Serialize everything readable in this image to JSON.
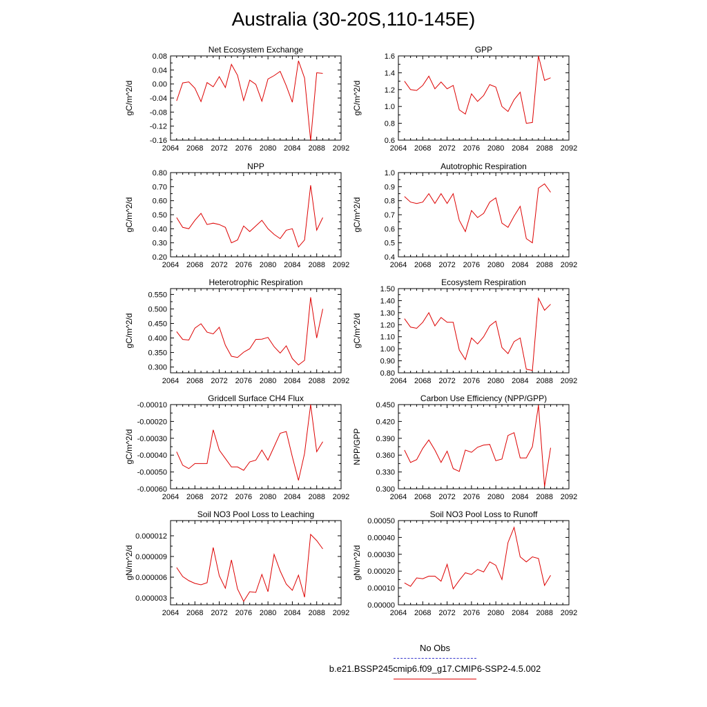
{
  "title": "Australia (30-20S,110-145E)",
  "legend": {
    "obs_label": "No Obs",
    "obs_color": "#3333cc",
    "model_label": "b.e21.BSSP245cmip6.f09_g17.CMIP6-SSP2-4.5.002",
    "model_color": "#dd0000"
  },
  "chart_data": [
    {
      "type": "line",
      "title": "Net Ecosystem Exchange",
      "ylabel": "gC/m^2/d",
      "xlim": [
        2064,
        2092
      ],
      "ylim": [
        -0.16,
        0.08
      ],
      "x_ticks": [
        "2064",
        "2068",
        "2072",
        "2076",
        "2080",
        "2084",
        "2088",
        "2092"
      ],
      "y_ticks": [
        "-0.16",
        "-0.12",
        "-0.08",
        "-0.04",
        "0.00",
        "0.04",
        "0.08"
      ],
      "x": [
        2065,
        2066,
        2067,
        2068,
        2069,
        2070,
        2071,
        2072,
        2073,
        2074,
        2075,
        2076,
        2077,
        2078,
        2079,
        2080,
        2081,
        2082,
        2083,
        2084,
        2085,
        2086,
        2087,
        2088,
        2089
      ],
      "values": [
        -0.048,
        0.003,
        0.006,
        -0.012,
        -0.05,
        0.004,
        -0.008,
        0.021,
        -0.01,
        0.056,
        0.025,
        -0.047,
        0.011,
        -0.001,
        -0.049,
        0.014,
        0.024,
        0.036,
        -0.005,
        -0.052,
        0.066,
        0.017,
        -0.162,
        0.032,
        0.03
      ]
    },
    {
      "type": "line",
      "title": "GPP",
      "ylabel": "gC/m^2/d",
      "xlim": [
        2064,
        2092
      ],
      "ylim": [
        0.6,
        1.6
      ],
      "x_ticks": [
        "2064",
        "2068",
        "2072",
        "2076",
        "2080",
        "2084",
        "2088",
        "2092"
      ],
      "y_ticks": [
        "0.6",
        "0.8",
        "1.0",
        "1.2",
        "1.4",
        "1.6"
      ],
      "x": [
        2065,
        2066,
        2067,
        2068,
        2069,
        2070,
        2071,
        2072,
        2073,
        2074,
        2075,
        2076,
        2077,
        2078,
        2079,
        2080,
        2081,
        2082,
        2083,
        2084,
        2085,
        2086,
        2087,
        2088,
        2089
      ],
      "values": [
        1.3,
        1.2,
        1.19,
        1.25,
        1.36,
        1.21,
        1.29,
        1.21,
        1.25,
        0.96,
        0.91,
        1.15,
        1.06,
        1.13,
        1.26,
        1.23,
        1.0,
        0.94,
        1.08,
        1.17,
        0.8,
        0.81,
        1.6,
        1.31,
        1.34
      ]
    },
    {
      "type": "line",
      "title": "NPP",
      "ylabel": "gC/m^2/d",
      "xlim": [
        2064,
        2092
      ],
      "ylim": [
        0.2,
        0.8
      ],
      "x_ticks": [
        "2064",
        "2068",
        "2072",
        "2076",
        "2080",
        "2084",
        "2088",
        "2092"
      ],
      "y_ticks": [
        "0.20",
        "0.30",
        "0.40",
        "0.50",
        "0.60",
        "0.70",
        "0.80"
      ],
      "x": [
        2065,
        2066,
        2067,
        2068,
        2069,
        2070,
        2071,
        2072,
        2073,
        2074,
        2075,
        2076,
        2077,
        2078,
        2079,
        2080,
        2081,
        2082,
        2083,
        2084,
        2085,
        2086,
        2087,
        2088,
        2089
      ],
      "values": [
        0.48,
        0.41,
        0.4,
        0.46,
        0.51,
        0.43,
        0.44,
        0.43,
        0.41,
        0.3,
        0.32,
        0.42,
        0.38,
        0.42,
        0.46,
        0.4,
        0.36,
        0.33,
        0.39,
        0.4,
        0.27,
        0.32,
        0.71,
        0.39,
        0.48
      ]
    },
    {
      "type": "line",
      "title": "Autotrophic Respiration",
      "ylabel": "gC/m^2/d",
      "xlim": [
        2064,
        2092
      ],
      "ylim": [
        0.4,
        1.0
      ],
      "x_ticks": [
        "2064",
        "2068",
        "2072",
        "2076",
        "2080",
        "2084",
        "2088",
        "2092"
      ],
      "y_ticks": [
        "0.4",
        "0.5",
        "0.6",
        "0.7",
        "0.8",
        "0.9",
        "1.0"
      ],
      "x": [
        2065,
        2066,
        2067,
        2068,
        2069,
        2070,
        2071,
        2072,
        2073,
        2074,
        2075,
        2076,
        2077,
        2078,
        2079,
        2080,
        2081,
        2082,
        2083,
        2084,
        2085,
        2086,
        2087,
        2088,
        2089
      ],
      "values": [
        0.83,
        0.79,
        0.78,
        0.79,
        0.85,
        0.78,
        0.85,
        0.78,
        0.85,
        0.66,
        0.58,
        0.73,
        0.68,
        0.71,
        0.79,
        0.82,
        0.64,
        0.61,
        0.69,
        0.76,
        0.53,
        0.5,
        0.89,
        0.92,
        0.86
      ]
    },
    {
      "type": "line",
      "title": "Heterotrophic Respiration",
      "ylabel": "gC/m^2/d",
      "xlim": [
        2064,
        2092
      ],
      "ylim": [
        0.28,
        0.57
      ],
      "x_ticks": [
        "2064",
        "2068",
        "2072",
        "2076",
        "2080",
        "2084",
        "2088",
        "2092"
      ],
      "y_ticks": [
        "0.300",
        "0.350",
        "0.400",
        "0.450",
        "0.500",
        "0.550"
      ],
      "y_tick_values": [
        0.3,
        0.35,
        0.4,
        0.45,
        0.5,
        0.55
      ],
      "x": [
        2065,
        2066,
        2067,
        2068,
        2069,
        2070,
        2071,
        2072,
        2073,
        2074,
        2075,
        2076,
        2077,
        2078,
        2079,
        2080,
        2081,
        2082,
        2083,
        2084,
        2085,
        2086,
        2087,
        2088,
        2089
      ],
      "values": [
        0.422,
        0.395,
        0.393,
        0.434,
        0.449,
        0.42,
        0.414,
        0.437,
        0.375,
        0.337,
        0.333,
        0.351,
        0.363,
        0.395,
        0.396,
        0.402,
        0.37,
        0.348,
        0.373,
        0.329,
        0.307,
        0.323,
        0.54,
        0.4,
        0.5
      ]
    },
    {
      "type": "line",
      "title": "Ecosystem Respiration",
      "ylabel": "gC/m^2/d",
      "xlim": [
        2064,
        2092
      ],
      "ylim": [
        0.8,
        1.5
      ],
      "x_ticks": [
        "2064",
        "2068",
        "2072",
        "2076",
        "2080",
        "2084",
        "2088",
        "2092"
      ],
      "y_ticks": [
        "0.80",
        "0.90",
        "1.00",
        "1.10",
        "1.20",
        "1.30",
        "1.40",
        "1.50"
      ],
      "x": [
        2065,
        2066,
        2067,
        2068,
        2069,
        2070,
        2071,
        2072,
        2073,
        2074,
        2075,
        2076,
        2077,
        2078,
        2079,
        2080,
        2081,
        2082,
        2083,
        2084,
        2085,
        2086,
        2087,
        2088,
        2089
      ],
      "values": [
        1.25,
        1.18,
        1.17,
        1.22,
        1.3,
        1.19,
        1.26,
        1.22,
        1.22,
        0.99,
        0.91,
        1.09,
        1.04,
        1.1,
        1.19,
        1.23,
        1.01,
        0.96,
        1.06,
        1.09,
        0.83,
        0.82,
        1.42,
        1.32,
        1.37
      ]
    },
    {
      "type": "line",
      "title": "Gridcell Surface CH4 Flux",
      "ylabel": "gC/m^2/d",
      "xlim": [
        2064,
        2092
      ],
      "ylim": [
        -0.0006,
        -0.0001
      ],
      "x_ticks": [
        "2064",
        "2068",
        "2072",
        "2076",
        "2080",
        "2084",
        "2088",
        "2092"
      ],
      "y_ticks": [
        "-0.00060",
        "-0.00050",
        "-0.00040",
        "-0.00030",
        "-0.00020",
        "-0.00010"
      ],
      "x": [
        2065,
        2066,
        2067,
        2068,
        2069,
        2070,
        2071,
        2072,
        2073,
        2074,
        2075,
        2076,
        2077,
        2078,
        2079,
        2080,
        2081,
        2082,
        2083,
        2084,
        2085,
        2086,
        2087,
        2088,
        2089
      ],
      "values": [
        -0.00038,
        -0.00046,
        -0.00048,
        -0.00045,
        -0.00045,
        -0.00045,
        -0.00025,
        -0.00037,
        -0.00042,
        -0.00047,
        -0.00047,
        -0.00049,
        -0.00044,
        -0.00043,
        -0.00037,
        -0.00043,
        -0.00035,
        -0.00027,
        -0.00026,
        -0.00041,
        -0.00055,
        -0.00039,
        -0.0001,
        -0.00038,
        -0.00032
      ]
    },
    {
      "type": "line",
      "title": "Carbon Use Efficiency (NPP/GPP)",
      "ylabel": "NPP/GPP",
      "xlim": [
        2064,
        2092
      ],
      "ylim": [
        0.3,
        0.45
      ],
      "x_ticks": [
        "2064",
        "2068",
        "2072",
        "2076",
        "2080",
        "2084",
        "2088",
        "2092"
      ],
      "y_ticks": [
        "0.300",
        "0.330",
        "0.360",
        "0.390",
        "0.420",
        "0.450"
      ],
      "y_tick_values": [
        0.3,
        0.33,
        0.36,
        0.39,
        0.42,
        0.45
      ],
      "x": [
        2065,
        2066,
        2067,
        2068,
        2069,
        2070,
        2071,
        2072,
        2073,
        2074,
        2075,
        2076,
        2077,
        2078,
        2079,
        2080,
        2081,
        2082,
        2083,
        2084,
        2085,
        2086,
        2087,
        2088,
        2089
      ],
      "values": [
        0.369,
        0.347,
        0.352,
        0.372,
        0.387,
        0.369,
        0.347,
        0.367,
        0.336,
        0.331,
        0.369,
        0.365,
        0.374,
        0.378,
        0.379,
        0.35,
        0.353,
        0.395,
        0.4,
        0.355,
        0.355,
        0.375,
        0.449,
        0.304,
        0.373
      ]
    },
    {
      "type": "line",
      "title": "Soil NO3 Pool Loss to Leaching",
      "ylabel": "gN/m^2/d",
      "xlim": [
        2064,
        2092
      ],
      "ylim": [
        2e-06,
        1.42e-05
      ],
      "x_ticks": [
        "2064",
        "2068",
        "2072",
        "2076",
        "2080",
        "2084",
        "2088",
        "2092"
      ],
      "y_ticks": [
        "0.000003",
        "0.000006",
        "0.000009",
        "0.000012"
      ],
      "y_tick_values": [
        3e-06,
        6e-06,
        9e-06,
        1.2e-05
      ],
      "x": [
        2065,
        2066,
        2067,
        2068,
        2069,
        2070,
        2071,
        2072,
        2073,
        2074,
        2075,
        2076,
        2077,
        2078,
        2079,
        2080,
        2081,
        2082,
        2083,
        2084,
        2085,
        2086,
        2087,
        2088,
        2089
      ],
      "values": [
        7.4e-06,
        6.1e-06,
        5.5e-06,
        5.1e-06,
        4.9e-06,
        5.2e-06,
        1.03e-05,
        6.2e-06,
        4.4e-06,
        8.5e-06,
        4.3e-06,
        2.5e-06,
        3.9e-06,
        3.8e-06,
        6.4e-06,
        3.9e-06,
        9.3e-06,
        6.9e-06,
        5e-06,
        4.1e-06,
        6.3e-06,
        3.1e-06,
        1.22e-05,
        1.13e-05,
        1.01e-05
      ]
    },
    {
      "type": "line",
      "title": "Soil NO3 Pool Loss to Runoff",
      "ylabel": "gN/m^2/d",
      "xlim": [
        2064,
        2092
      ],
      "ylim": [
        0.0,
        0.0005
      ],
      "x_ticks": [
        "2064",
        "2068",
        "2072",
        "2076",
        "2080",
        "2084",
        "2088",
        "2092"
      ],
      "y_ticks": [
        "0.00000",
        "0.00010",
        "0.00020",
        "0.00030",
        "0.00040",
        "0.00050"
      ],
      "x": [
        2065,
        2066,
        2067,
        2068,
        2069,
        2070,
        2071,
        2072,
        2073,
        2074,
        2075,
        2076,
        2077,
        2078,
        2079,
        2080,
        2081,
        2082,
        2083,
        2084,
        2085,
        2086,
        2087,
        2088,
        2089
      ],
      "values": [
        0.00013,
        0.00011,
        0.00016,
        0.000155,
        0.00017,
        0.00017,
        0.00014,
        0.00024,
        9.5e-05,
        0.000145,
        0.00019,
        0.00018,
        0.00021,
        0.000195,
        0.000255,
        0.000235,
        0.00015,
        0.00037,
        0.00046,
        0.000285,
        0.000255,
        0.000285,
        0.000275,
        0.000115,
        0.000175
      ]
    }
  ]
}
